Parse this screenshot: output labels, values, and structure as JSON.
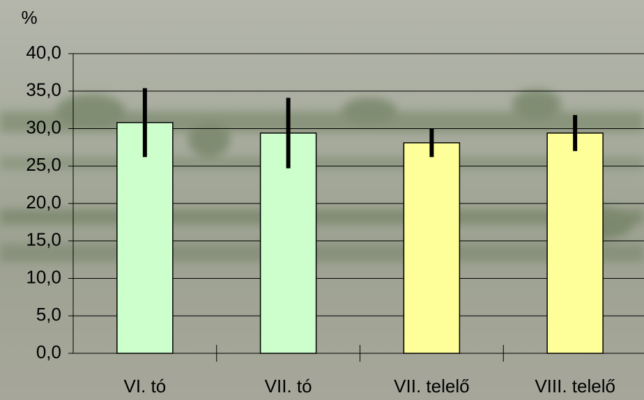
{
  "chart_data": {
    "type": "bar",
    "y_label": "%",
    "categories": [
      "VI. tó",
      "VII. tó",
      "VII. telelő",
      "VIII. telelő"
    ],
    "values": [
      30.8,
      29.4,
      28.1,
      29.4
    ],
    "errors": [
      4.6,
      4.7,
      1.9,
      2.4
    ],
    "colors": [
      "#ccffcc",
      "#ccffcc",
      "#ffff99",
      "#ffff99"
    ],
    "ylim": [
      0,
      40
    ],
    "yticks": [
      {
        "value": 0,
        "label": "0,0"
      },
      {
        "value": 5,
        "label": "5,0"
      },
      {
        "value": 10,
        "label": "10,0"
      },
      {
        "value": 15,
        "label": "15,0"
      },
      {
        "value": 20,
        "label": "20,0"
      },
      {
        "value": 25,
        "label": "25,0"
      },
      {
        "value": 30,
        "label": "30,0"
      },
      {
        "value": 35,
        "label": "35,0"
      },
      {
        "value": 40,
        "label": "40,0"
      }
    ],
    "grid": true
  }
}
